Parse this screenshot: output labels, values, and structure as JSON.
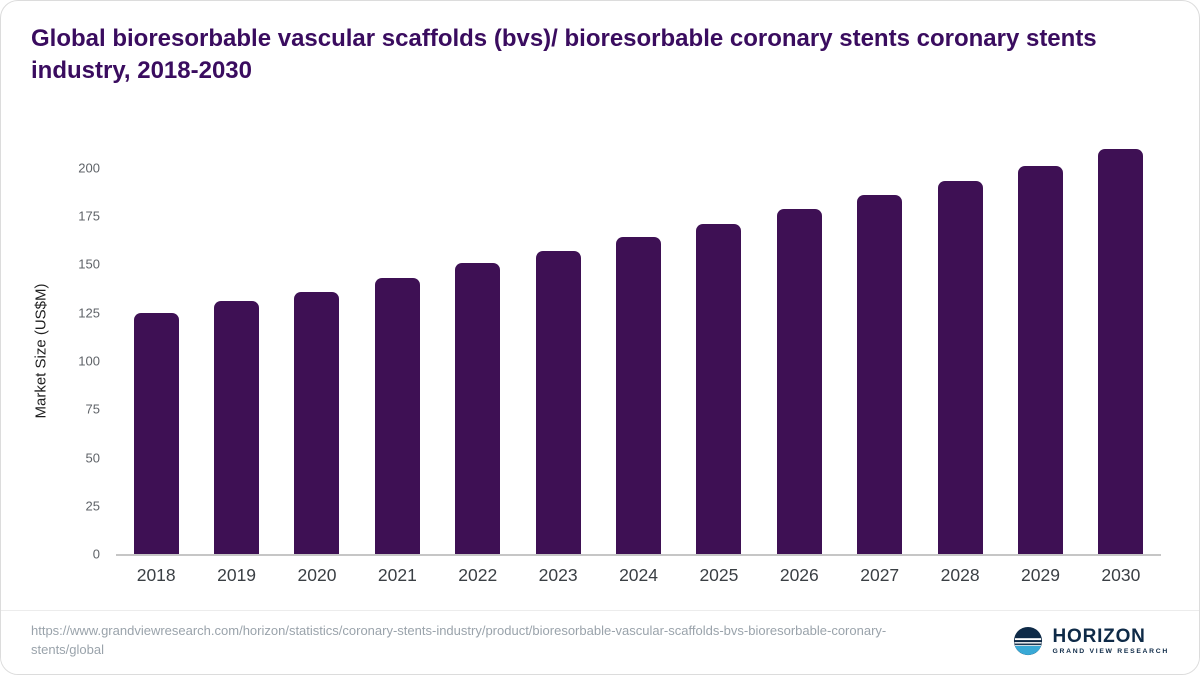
{
  "title": "Global bioresorbable vascular scaffolds (bvs)/ bioresorbable coronary stents coronary stents industry, 2018-2030",
  "chart_data": {
    "type": "bar",
    "categories": [
      "2018",
      "2019",
      "2020",
      "2021",
      "2022",
      "2023",
      "2024",
      "2025",
      "2026",
      "2027",
      "2028",
      "2029",
      "2030"
    ],
    "values": [
      125,
      131,
      136,
      143,
      151,
      157,
      164,
      171,
      179,
      186,
      193,
      201,
      210
    ],
    "title": "Global bioresorbable vascular scaffolds (bvs)/ bioresorbable coronary stents coronary stents industry, 2018-2030",
    "xlabel": "",
    "ylabel": "Market Size (US$M)",
    "ylim": [
      0,
      215
    ],
    "yticks": [
      0,
      25,
      50,
      75,
      100,
      125,
      150,
      175,
      200
    ],
    "bar_color": "#3E1054",
    "grid": false,
    "legend": "none"
  },
  "footer": {
    "source_url": "https://www.grandviewresearch.com/horizon/statistics/coronary-stents-industry/product/bioresorbable-vascular-scaffolds-bvs-bioresorbable-coronary-stents/global",
    "logo": {
      "name": "HORIZON",
      "subtitle": "GRAND VIEW RESEARCH"
    }
  },
  "colors": {
    "title": "#3A0C5F",
    "bar": "#3E1054",
    "axis_text": "#5f6368",
    "source_text": "#9aa3ab",
    "logo_navy": "#0E2A47",
    "logo_blue": "#39A9D6"
  }
}
